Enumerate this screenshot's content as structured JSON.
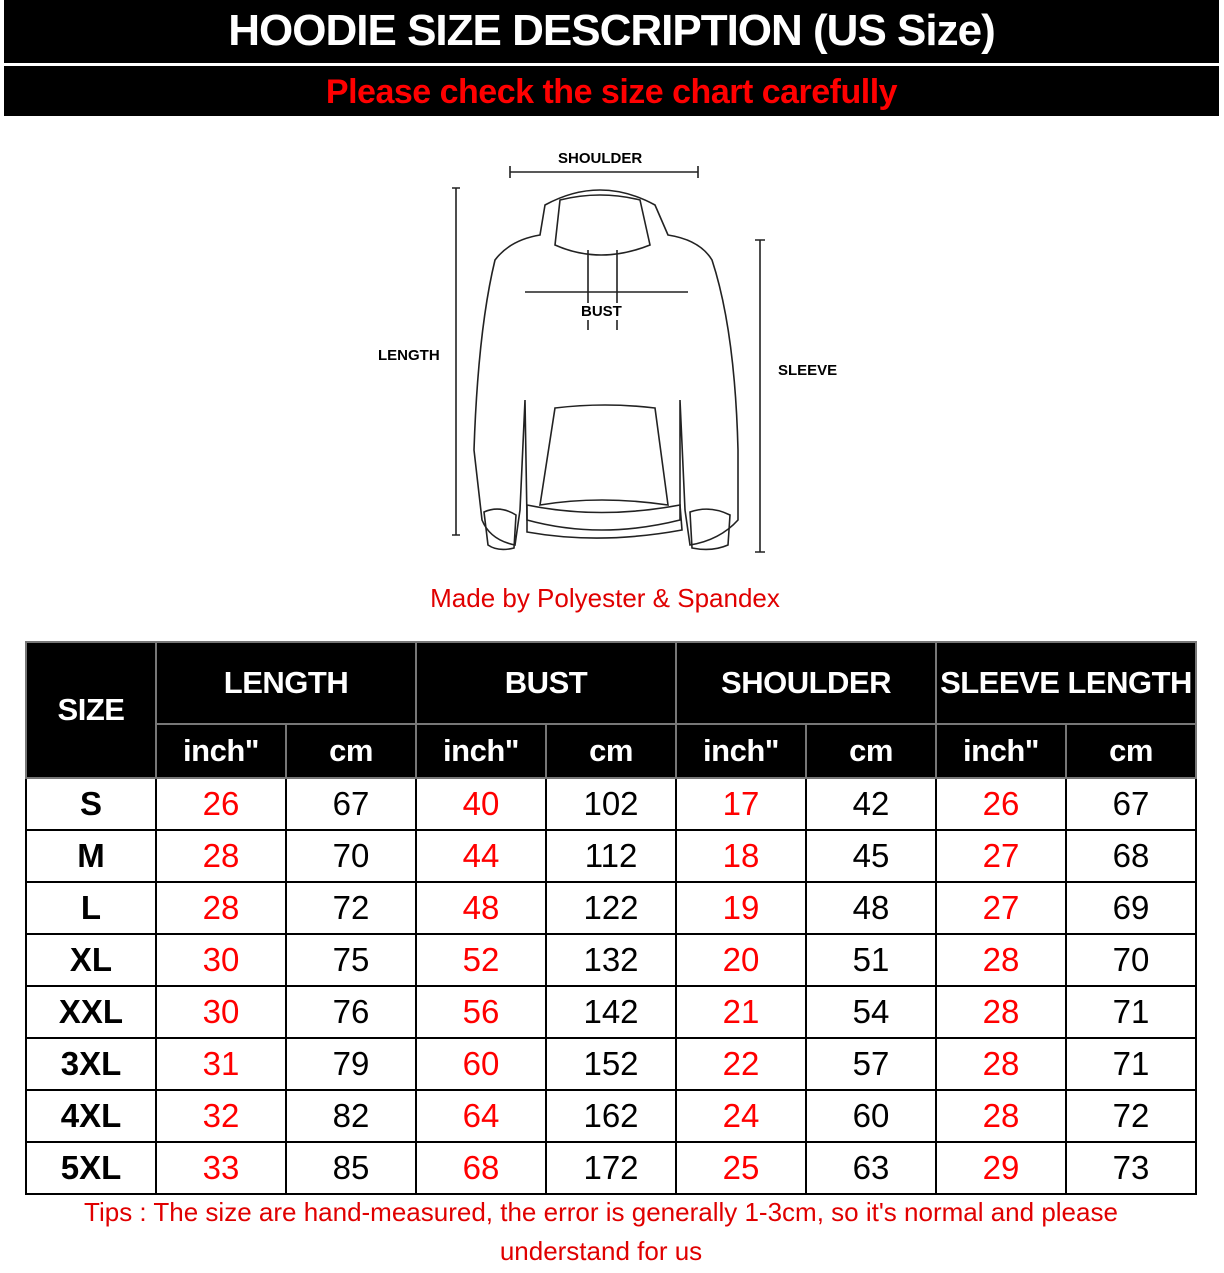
{
  "header": {
    "title": "HOODIE SIZE DESCRIPTION (US Size)",
    "subtitle": "Please check the size chart carefully"
  },
  "diagram": {
    "shoulder": "SHOULDER",
    "bust": "BUST",
    "length": "LENGTH",
    "sleeve": "SLEEVE"
  },
  "material": "Made by Polyester & Spandex",
  "table": {
    "size_header": "SIZE",
    "groups": [
      "LENGTH",
      "BUST",
      "SHOULDER",
      "SLEEVE LENGTH"
    ],
    "units": [
      "inch\"",
      "cm"
    ],
    "rows": [
      {
        "size": "S",
        "values": [
          "26",
          "67",
          "40",
          "102",
          "17",
          "42",
          "26",
          "67"
        ]
      },
      {
        "size": "M",
        "values": [
          "28",
          "70",
          "44",
          "112",
          "18",
          "45",
          "27",
          "68"
        ]
      },
      {
        "size": "L",
        "values": [
          "28",
          "72",
          "48",
          "122",
          "19",
          "48",
          "27",
          "69"
        ]
      },
      {
        "size": "XL",
        "values": [
          "30",
          "75",
          "52",
          "132",
          "20",
          "51",
          "28",
          "70"
        ]
      },
      {
        "size": "XXL",
        "values": [
          "30",
          "76",
          "56",
          "142",
          "21",
          "54",
          "28",
          "71"
        ]
      },
      {
        "size": "3XL",
        "values": [
          "31",
          "79",
          "60",
          "152",
          "22",
          "57",
          "28",
          "71"
        ]
      },
      {
        "size": "4XL",
        "values": [
          "32",
          "82",
          "64",
          "162",
          "24",
          "60",
          "28",
          "72"
        ]
      },
      {
        "size": "5XL",
        "values": [
          "33",
          "85",
          "68",
          "172",
          "25",
          "63",
          "29",
          "73"
        ]
      }
    ]
  },
  "tips": "Tips : The size are hand-measured, the error is generally 1-3cm, so it's normal and please understand for us",
  "colors": {
    "accent": "#ff0000",
    "header_bg": "#000000"
  }
}
